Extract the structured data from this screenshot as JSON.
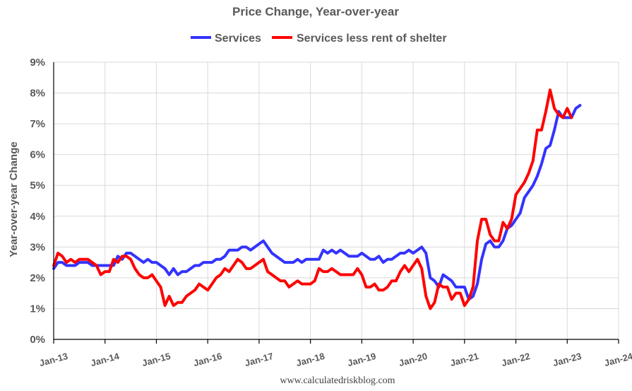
{
  "chart_data": {
    "type": "line",
    "title": "Price Change, Year-over-year",
    "ylabel": "Year-over-year Change",
    "xlabel": "",
    "source": "www.calculatedriskblog.com",
    "ylim": [
      0,
      9
    ],
    "y_ticks": [
      "0%",
      "1%",
      "2%",
      "3%",
      "4%",
      "5%",
      "6%",
      "7%",
      "8%",
      "9%"
    ],
    "x_tick_labels": [
      "Jan-13",
      "Jan-14",
      "Jan-15",
      "Jan-16",
      "Jan-17",
      "Jan-18",
      "Jan-19",
      "Jan-20",
      "Jan-21",
      "Jan-22",
      "Jan-23",
      "Jan-24"
    ],
    "x_start": "Jan-13",
    "legend_position": "top",
    "grid": true,
    "series": [
      {
        "name": "Services",
        "color": "#3333ff",
        "values": [
          2.3,
          2.5,
          2.5,
          2.4,
          2.4,
          2.4,
          2.5,
          2.5,
          2.5,
          2.4,
          2.4,
          2.4,
          2.4,
          2.4,
          2.4,
          2.7,
          2.6,
          2.8,
          2.8,
          2.7,
          2.6,
          2.5,
          2.6,
          2.5,
          2.5,
          2.4,
          2.3,
          2.1,
          2.3,
          2.1,
          2.2,
          2.2,
          2.3,
          2.4,
          2.4,
          2.5,
          2.5,
          2.5,
          2.6,
          2.6,
          2.7,
          2.9,
          2.9,
          2.9,
          3.0,
          3.0,
          2.9,
          3.0,
          3.1,
          3.2,
          3.0,
          2.8,
          2.7,
          2.6,
          2.5,
          2.5,
          2.5,
          2.6,
          2.5,
          2.6,
          2.6,
          2.6,
          2.6,
          2.9,
          2.8,
          2.9,
          2.8,
          2.9,
          2.8,
          2.7,
          2.7,
          2.7,
          2.8,
          2.7,
          2.6,
          2.6,
          2.7,
          2.5,
          2.6,
          2.6,
          2.7,
          2.8,
          2.8,
          2.9,
          2.8,
          2.9,
          3.0,
          2.8,
          2.0,
          1.9,
          1.7,
          2.1,
          2.0,
          1.9,
          1.7,
          1.7,
          1.7,
          1.3,
          1.4,
          1.8,
          2.6,
          3.1,
          3.2,
          3.0,
          3.0,
          3.2,
          3.6,
          3.7,
          3.9,
          4.1,
          4.6,
          4.8,
          5.0,
          5.3,
          5.7,
          6.2,
          6.3,
          6.8,
          7.4,
          7.2,
          7.2,
          7.2,
          7.5,
          7.6
        ]
      },
      {
        "name": "Services less rent of shelter",
        "color": "#ff0000",
        "values": [
          2.4,
          2.8,
          2.7,
          2.5,
          2.6,
          2.5,
          2.6,
          2.6,
          2.6,
          2.5,
          2.4,
          2.1,
          2.2,
          2.2,
          2.6,
          2.5,
          2.7,
          2.7,
          2.6,
          2.3,
          2.1,
          2.0,
          2.0,
          2.1,
          1.9,
          1.7,
          1.1,
          1.4,
          1.1,
          1.2,
          1.2,
          1.4,
          1.5,
          1.6,
          1.8,
          1.7,
          1.6,
          1.8,
          2.0,
          2.1,
          2.3,
          2.2,
          2.4,
          2.6,
          2.5,
          2.3,
          2.3,
          2.4,
          2.5,
          2.6,
          2.2,
          2.1,
          2.0,
          1.9,
          1.9,
          1.7,
          1.8,
          1.9,
          1.8,
          1.8,
          1.8,
          1.9,
          2.3,
          2.2,
          2.2,
          2.3,
          2.2,
          2.1,
          2.1,
          2.1,
          2.1,
          2.3,
          2.1,
          1.7,
          1.7,
          1.8,
          1.6,
          1.6,
          1.7,
          1.9,
          1.9,
          2.2,
          2.4,
          2.2,
          2.4,
          2.6,
          2.3,
          1.4,
          1.0,
          1.2,
          1.8,
          1.7,
          1.7,
          1.3,
          1.5,
          1.5,
          1.1,
          1.3,
          1.7,
          3.2,
          3.9,
          3.9,
          3.4,
          3.2,
          3.2,
          3.8,
          3.6,
          3.9,
          4.7,
          4.9,
          5.1,
          5.4,
          5.8,
          6.8,
          6.8,
          7.4,
          8.1,
          7.5,
          7.3,
          7.2,
          7.5,
          7.2
        ]
      }
    ]
  }
}
